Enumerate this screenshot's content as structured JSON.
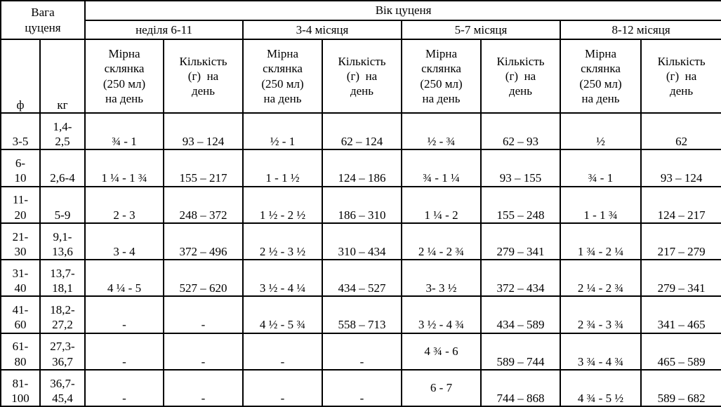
{
  "table": {
    "corner_header": "Вага\nцуценя",
    "age_header": "Вік цуценя",
    "age_groups": [
      "неділя 6-11",
      "3-4 місяця",
      "5-7 місяця",
      "8-12 місяця"
    ],
    "sub_headers": {
      "cup": "Мірна\nсклянка\n(250 мл)\nна день",
      "qty": "Кількість\n(г)  на\nдень"
    },
    "weight_units": {
      "lb": "ф",
      "kg": "кг"
    },
    "rows": [
      {
        "lb": "3-5",
        "kg": "1,4-\n2,5",
        "values": [
          "¾ - 1",
          "93 – 124",
          "½ - 1",
          "62 – 124",
          "½ - ¾",
          "62 – 93",
          "½",
          "62"
        ]
      },
      {
        "lb": "6-\n10",
        "kg": "2,6-4",
        "values": [
          "1 ¼ - 1 ¾",
          "155 – 217",
          "1 - 1 ½",
          "124 – 186",
          "¾ - 1 ¼",
          "93 – 155",
          "¾ - 1",
          "93 – 124"
        ]
      },
      {
        "lb": "11-\n20",
        "kg": "5-9",
        "values": [
          "2 - 3",
          "248 – 372",
          "1 ½ - 2 ½",
          "186 – 310",
          "1 ¼ - 2",
          "155 – 248",
          "1 - 1 ¾",
          "124 – 217"
        ]
      },
      {
        "lb": "21-\n30",
        "kg": "9,1-\n13,6",
        "values": [
          "3 - 4",
          "372 – 496",
          "2 ½ - 3 ½",
          "310 – 434",
          "2 ¼ - 2 ¾",
          "279 – 341",
          "1 ¾ - 2 ¼",
          "217 – 279"
        ]
      },
      {
        "lb": "31-\n40",
        "kg": "13,7-\n18,1",
        "values": [
          "4 ¼ - 5",
          "527 – 620",
          "3 ½ - 4 ¼",
          "434 – 527",
          "3- 3 ½",
          "372 – 434",
          "2 ¼ - 2 ¾",
          "279 – 341"
        ]
      },
      {
        "lb": "41-\n60",
        "kg": "18,2-\n27,2",
        "values": [
          "-",
          "-",
          "4 ½ - 5 ¾",
          "558 – 713",
          "3 ½ - 4 ¾",
          "434 – 589",
          "2 ¾ - 3 ¾",
          "341 – 465"
        ]
      },
      {
        "lb": "61-\n80",
        "kg": "27,3-\n36,7",
        "values": [
          "-",
          "-",
          "-",
          "-",
          "4 ¾ - 6",
          "589 – 744",
          "3 ¾ - 4 ¾",
          "465 – 589"
        ]
      },
      {
        "lb": "81-\n100",
        "kg": "36,7-\n45,4",
        "values": [
          "-",
          "-",
          "-",
          "-",
          "6 - 7",
          "744 – 868",
          "4 ¾ - 5 ½",
          "589 – 682"
        ]
      }
    ]
  }
}
